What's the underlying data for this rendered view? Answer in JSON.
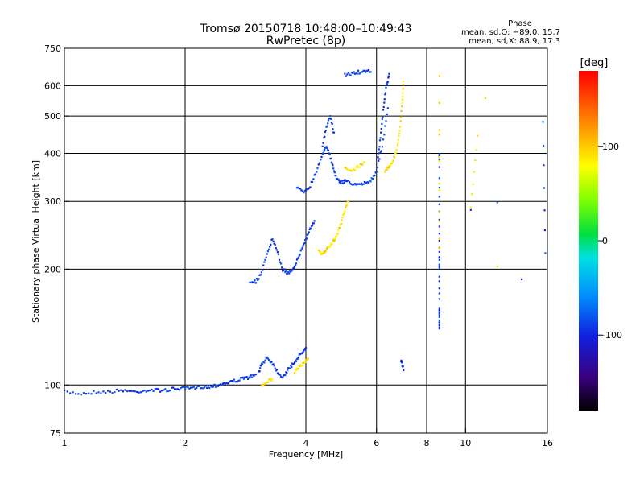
{
  "chart_data": {
    "type": "scatter",
    "title": "Tromsø 20150718 10:48:00–10:49:43",
    "subtitle": "RwPretec (8p)",
    "xlabel": "Frequency [MHz]",
    "ylabel": "Stationary phase Virtual Height [km]",
    "xscale": "log",
    "yscale": "log",
    "xlim": [
      1,
      16
    ],
    "ylim": [
      75,
      750
    ],
    "xticks": [
      1,
      2,
      4,
      6,
      8,
      10,
      16
    ],
    "yticks": [
      75,
      100,
      200,
      300,
      400,
      500,
      600,
      750
    ],
    "x_gridlines": [
      2,
      4,
      6,
      8,
      10
    ],
    "y_gridlines": [
      100,
      200,
      300,
      400,
      500,
      600
    ],
    "stats": {
      "title": "Phase",
      "line_o": "mean, sd,O: −89.0, 15.7",
      "line_x": "mean, sd,X: 88.9, 17.3"
    },
    "colorbar": {
      "label": "[deg]",
      "range": [
        -180,
        180
      ],
      "ticks": [
        100,
        0,
        -100
      ]
    },
    "series": [
      {
        "mode": "O",
        "phase_deg": -90,
        "traces": [
          {
            "x": [
              1.0,
              1.1,
              1.2,
              1.3,
              1.4,
              1.5,
              1.6,
              1.7,
              1.8,
              1.9,
              2.0,
              2.1,
              2.2,
              2.3,
              2.4,
              2.5,
              2.6,
              2.7,
              2.8,
              2.9,
              3.0
            ],
            "y": [
              96,
              95,
              96,
              96,
              97,
              96,
              97,
              97,
              97,
              98,
              98,
              98,
              99,
              99,
              100,
              101,
              102,
              103,
              104,
              105,
              106
            ]
          },
          {
            "x": [
              3.05,
              3.1,
              3.2,
              3.3,
              3.4,
              3.5,
              3.6,
              3.7,
              3.8,
              3.9,
              4.0
            ],
            "y": [
              108,
              113,
              118,
              114,
              108,
              105,
              109,
              113,
              117,
              121,
              126
            ]
          },
          {
            "x": [
              2.9,
              3.0,
              3.1,
              3.2,
              3.3,
              3.4,
              3.5,
              3.6,
              3.7,
              3.8,
              3.9,
              4.0,
              4.1,
              4.2
            ],
            "y": [
              186,
              186,
              195,
              220,
              240,
              220,
              200,
              195,
              200,
              210,
              225,
              240,
              255,
              265
            ]
          },
          {
            "x": [
              3.8,
              3.95,
              4.1,
              4.25,
              4.4,
              4.5,
              4.6,
              4.7,
              4.8,
              4.9,
              5.0
            ],
            "y": [
              325,
              318,
              330,
              360,
              400,
              420,
              390,
              360,
              340,
              335,
              340
            ]
          },
          {
            "x": [
              4.4,
              4.5,
              4.6,
              4.7
            ],
            "y": [
              420,
              470,
              500,
              450
            ]
          },
          {
            "x": [
              5.0,
              5.2,
              5.4,
              5.6,
              5.8,
              6.0,
              6.2,
              6.4
            ],
            "y": [
              340,
              335,
              330,
              335,
              340,
              360,
              420,
              520
            ]
          },
          {
            "x": [
              6.05,
              6.15,
              6.25,
              6.35,
              6.45
            ],
            "y": [
              390,
              450,
              530,
              600,
              640
            ]
          },
          {
            "x": [
              5.0,
              5.2,
              5.4,
              5.6,
              5.8
            ],
            "y": [
              640,
              645,
              650,
              650,
              655
            ]
          },
          {
            "x": [
              8.6,
              8.6,
              8.6,
              8.6,
              8.6,
              8.6,
              8.6,
              8.6
            ],
            "y": [
              400,
              385,
              280,
              220,
              200,
              160,
              150,
              140
            ]
          },
          {
            "x": [
              6.9,
              7.0,
              10.3,
              12.0,
              13.8,
              15.6,
              15.8
            ],
            "y": [
              116,
              110,
              285,
              300,
              190,
              480,
              220
            ]
          }
        ]
      },
      {
        "mode": "X",
        "phase_deg": 90,
        "traces": [
          {
            "x": [
              3.1,
              3.2,
              3.3
            ],
            "y": [
              100,
              102,
              104
            ]
          },
          {
            "x": [
              3.75,
              3.85,
              3.95,
              4.05
            ],
            "y": [
              108,
              111,
              114,
              118
            ]
          },
          {
            "x": [
              4.3,
              4.4,
              4.5,
              4.6,
              4.7,
              4.8,
              4.9,
              5.0,
              5.1
            ],
            "y": [
              222,
              220,
              225,
              230,
              238,
              250,
              265,
              285,
              300
            ]
          },
          {
            "x": [
              5.0,
              5.2,
              5.4,
              5.6
            ],
            "y": [
              365,
              360,
              370,
              380
            ]
          },
          {
            "x": [
              6.3,
              6.45,
              6.6,
              6.75,
              6.85,
              6.95,
              7.0
            ],
            "y": [
              360,
              370,
              385,
              410,
              460,
              540,
              620
            ]
          },
          {
            "x": [
              8.6,
              8.6,
              8.6,
              10.3,
              10.7,
              11.2,
              12.0
            ],
            "y": [
              240,
              640,
              225,
              290,
              440,
              560,
              205
            ]
          }
        ]
      }
    ]
  }
}
